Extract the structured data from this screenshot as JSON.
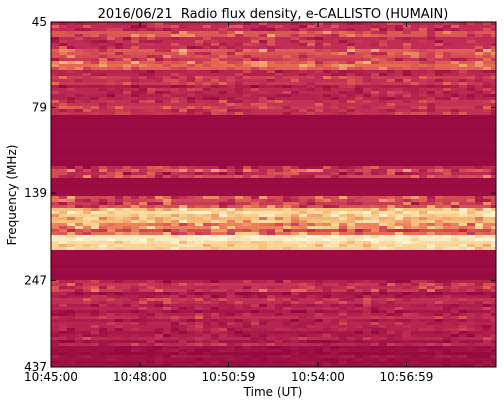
{
  "chart_data": {
    "type": "spectrogram",
    "title": "2016/06/21  Radio flux density, e-CALLISTO (HUMAIN)",
    "xlabel": "Time (UT)",
    "ylabel": "Frequency (MHz)",
    "xlim": [
      "10:45:00",
      "11:00:00"
    ],
    "xticks": [
      "10:45:00",
      "10:48:00",
      "10:50:59",
      "10:54:00",
      "10:56:59"
    ],
    "ylim": [
      45,
      437
    ],
    "yticks": [
      45,
      79,
      139,
      247,
      437
    ],
    "ylog": true,
    "y_inverted": true
  }
}
